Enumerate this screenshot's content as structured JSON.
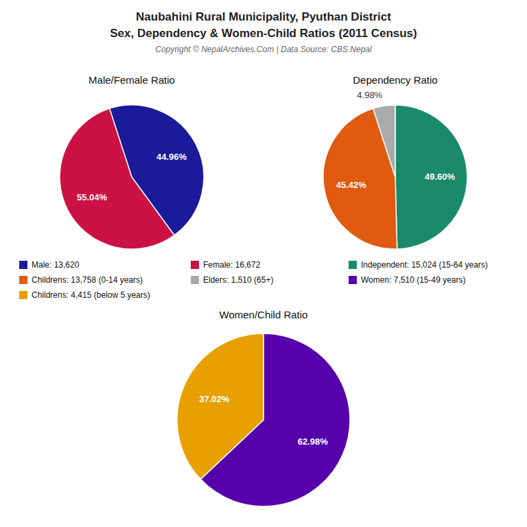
{
  "title": "Naubahini Rural Municipality, Pyuthan District",
  "subtitle": "Sex, Dependency & Women-Child Ratios (2011 Census)",
  "annotations": [
    "Copyright © NepalArchives.Com | Data Source: CBS Nepal"
  ],
  "chart_data": [
    {
      "type": "pie",
      "title": "Male/Female Ratio",
      "categories": [
        "Male: 13,620",
        "Female: 16,672"
      ],
      "values": [
        44.96,
        55.04
      ],
      "value_labels": [
        "44.96%",
        "55.04%"
      ],
      "colors": [
        "#1a1a9a",
        "#cc1144"
      ],
      "data_labels": true,
      "legend": "center"
    },
    {
      "type": "pie",
      "title": "Dependency Ratio",
      "categories": [
        "Independent: 15,024 (15-64 years)",
        "Childrens: 13,758 (0-14 years)",
        "Elders: 1,510 (65+)"
      ],
      "values": [
        49.6,
        45.42,
        4.98
      ],
      "value_labels": [
        "49.60%",
        "45.42%",
        "4.98%"
      ],
      "colors": [
        "#1a8a6a",
        "#e05a10",
        "#aaaaaa"
      ],
      "data_labels": true,
      "legend": "center"
    },
    {
      "type": "pie",
      "title": "Women/Child Ratio",
      "categories": [
        "Women: 7,510 (15-49 years)",
        "Childrens: 4,415 (below 5 years)"
      ],
      "values": [
        62.98,
        37.02
      ],
      "value_labels": [
        "62.98%",
        "37.02%"
      ],
      "colors": [
        "#5500aa",
        "#e8a000"
      ],
      "data_labels": true,
      "legend": "center"
    }
  ]
}
